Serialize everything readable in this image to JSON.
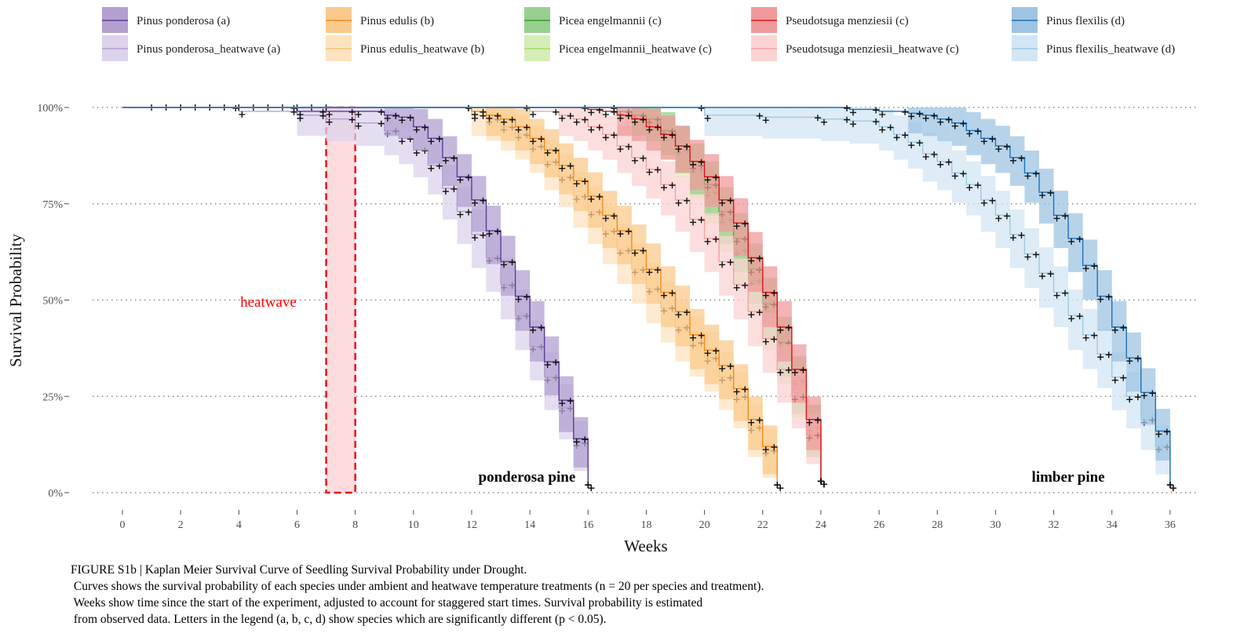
{
  "chart_data": {
    "type": "line",
    "xlabel": "Weeks",
    "ylabel": "Survival Probability",
    "xlim": [
      -1,
      37
    ],
    "ylim": [
      -0.04,
      1.04
    ],
    "x_ticks": [
      0,
      2,
      4,
      6,
      8,
      10,
      12,
      14,
      16,
      18,
      20,
      22,
      24,
      26,
      28,
      30,
      32,
      34,
      36
    ],
    "y_ticks": [
      {
        "value": 0,
        "label": "0%"
      },
      {
        "value": 0.25,
        "label": "25%"
      },
      {
        "value": 0.5,
        "label": "50%"
      },
      {
        "value": 0.75,
        "label": "75%"
      },
      {
        "value": 1,
        "label": "100%"
      }
    ],
    "grid": "horizontal dotted at y ticks",
    "legend_position": "top",
    "heatwave": {
      "x_start": 7,
      "x_end": 8,
      "label": "heatwave"
    },
    "annotations": [
      {
        "text": "ponderosa pine",
        "x": 13.9,
        "y": 0.045
      },
      {
        "text": "limber pine",
        "x": 32.5,
        "y": 0.045
      }
    ],
    "series": [
      {
        "name": "Pinus ponderosa (a)",
        "color": "#5e3c99",
        "ci_color": "#b2a0d0",
        "x": [
          0,
          6,
          7,
          8,
          9,
          9.5,
          10,
          10.5,
          11,
          11.5,
          12,
          12.5,
          13,
          13.5,
          14,
          14.5,
          15,
          15.5,
          16
        ],
        "y": [
          1,
          0.99,
          0.99,
          0.99,
          0.98,
          0.975,
          0.95,
          0.92,
          0.87,
          0.82,
          0.76,
          0.68,
          0.6,
          0.51,
          0.43,
          0.34,
          0.24,
          0.14,
          0.02
        ]
      },
      {
        "name": "Pinus ponderosa_heatwave (a)",
        "color": "#b2a0d0",
        "ci_color": "#dcd3ec",
        "x": [
          0,
          4,
          6,
          7,
          8,
          9,
          9.5,
          10,
          10.5,
          11,
          11.5,
          12,
          12.5,
          13,
          13.5,
          14,
          14.5,
          15,
          15.5,
          16
        ],
        "y": [
          1,
          0.99,
          0.98,
          0.97,
          0.96,
          0.94,
          0.92,
          0.89,
          0.85,
          0.79,
          0.73,
          0.67,
          0.61,
          0.54,
          0.46,
          0.38,
          0.3,
          0.22,
          0.13,
          0.02
        ]
      },
      {
        "name": "Pinus edulis (b)",
        "color": "#f28e1c",
        "ci_color": "#fbc98c",
        "x": [
          0,
          12,
          12.5,
          13,
          13.5,
          14,
          14.5,
          15,
          15.5,
          16,
          16.5,
          17,
          17.5,
          18,
          18.5,
          19,
          19.5,
          20,
          20.5,
          21,
          21.5,
          22,
          22.5
        ],
        "y": [
          1,
          0.99,
          0.98,
          0.97,
          0.95,
          0.92,
          0.89,
          0.85,
          0.81,
          0.77,
          0.72,
          0.68,
          0.63,
          0.58,
          0.52,
          0.47,
          0.41,
          0.37,
          0.33,
          0.27,
          0.19,
          0.12,
          0.02
        ]
      },
      {
        "name": "Pinus edulis_heatwave (b)",
        "color": "#f8c07a",
        "ci_color": "#fde3c0",
        "x": [
          0,
          12,
          12.5,
          13,
          13.5,
          14,
          14.5,
          15,
          15.5,
          16,
          16.5,
          17,
          17.5,
          18,
          18.5,
          19,
          19.5,
          20,
          20.5,
          21,
          21.5,
          22,
          22.5
        ],
        "y": [
          1,
          0.98,
          0.97,
          0.95,
          0.93,
          0.9,
          0.86,
          0.82,
          0.77,
          0.73,
          0.68,
          0.63,
          0.58,
          0.53,
          0.48,
          0.43,
          0.39,
          0.35,
          0.3,
          0.25,
          0.17,
          0.11,
          0.02
        ]
      },
      {
        "name": "Picea engelmannii (c)",
        "color": "#2ca02c",
        "ci_color": "#98d08f",
        "x": [
          0,
          17,
          17.5,
          18,
          18.5,
          19,
          19.5,
          20,
          20.5,
          21,
          21.5,
          22,
          22.5,
          23,
          23.5,
          24
        ],
        "y": [
          1,
          0.99,
          0.98,
          0.97,
          0.94,
          0.9,
          0.85,
          0.8,
          0.73,
          0.66,
          0.58,
          0.49,
          0.39,
          0.29,
          0.17,
          0.03
        ]
      },
      {
        "name": "Picea engelmannii_heatwave (c)",
        "color": "#a6d96a",
        "ci_color": "#d4eeb6",
        "x": [
          0,
          17,
          17.5,
          18,
          18.5,
          19,
          19.5,
          20,
          20.5,
          21,
          21.5,
          22,
          22.5,
          23,
          23.5,
          24
        ],
        "y": [
          1,
          0.99,
          0.98,
          0.96,
          0.93,
          0.89,
          0.84,
          0.78,
          0.71,
          0.63,
          0.55,
          0.46,
          0.37,
          0.28,
          0.17,
          0.03
        ]
      },
      {
        "name": "Pseudotsuga menziesii (c)",
        "color": "#d7191c",
        "ci_color": "#f09a9b",
        "x": [
          0,
          16,
          16.5,
          17,
          17.5,
          18,
          18.5,
          19,
          19.5,
          20,
          20.5,
          21,
          21.5,
          22,
          22.5,
          23,
          23.5,
          24
        ],
        "y": [
          1,
          0.995,
          0.99,
          0.98,
          0.97,
          0.95,
          0.93,
          0.9,
          0.86,
          0.82,
          0.76,
          0.7,
          0.61,
          0.52,
          0.43,
          0.32,
          0.19,
          0.03
        ]
      },
      {
        "name": "Pseudotsuga menziesii_heatwave (c)",
        "color": "#f4a2a3",
        "ci_color": "#fbd3d3",
        "x": [
          0,
          14,
          15,
          15.5,
          16,
          16.5,
          17,
          17.5,
          18,
          18.5,
          19,
          19.5,
          20,
          20.5,
          21,
          21.5,
          22,
          22.5,
          23,
          23.5,
          24
        ],
        "y": [
          1,
          0.99,
          0.98,
          0.97,
          0.95,
          0.93,
          0.9,
          0.87,
          0.84,
          0.8,
          0.76,
          0.71,
          0.66,
          0.6,
          0.54,
          0.47,
          0.4,
          0.32,
          0.25,
          0.15,
          0.03
        ]
      },
      {
        "name": "Pinus flexilis (d)",
        "color": "#2171b5",
        "ci_color": "#9ec4e3",
        "x": [
          0,
          25,
          26,
          27,
          27.5,
          28,
          28.5,
          29,
          29.5,
          30,
          30.5,
          31,
          31.5,
          32,
          32.5,
          33,
          33.5,
          34,
          34.5,
          35,
          35.5,
          36
        ],
        "y": [
          1,
          0.995,
          0.99,
          0.985,
          0.98,
          0.97,
          0.96,
          0.94,
          0.92,
          0.9,
          0.87,
          0.83,
          0.78,
          0.72,
          0.66,
          0.59,
          0.51,
          0.43,
          0.35,
          0.26,
          0.16,
          0.02
        ]
      },
      {
        "name": "Pinus flexilis_heatwave (d)",
        "color": "#9ecae1",
        "ci_color": "#d2e6f3",
        "x": [
          0,
          20,
          22,
          24,
          25,
          26,
          26.5,
          27,
          27.5,
          28,
          28.5,
          29,
          29.5,
          30,
          30.5,
          31,
          31.5,
          32,
          32.5,
          33,
          33.5,
          34,
          34.5,
          35,
          35.5,
          36
        ],
        "y": [
          1,
          0.98,
          0.975,
          0.97,
          0.965,
          0.95,
          0.93,
          0.91,
          0.88,
          0.86,
          0.83,
          0.8,
          0.76,
          0.72,
          0.67,
          0.62,
          0.57,
          0.52,
          0.46,
          0.41,
          0.36,
          0.3,
          0.25,
          0.19,
          0.12,
          0.02
        ]
      }
    ]
  },
  "caption": {
    "line1": "FIGURE S1b | Kaplan Meier Survival Curve of Seedling Survival Probability under Drought.",
    "line2": " Curves shows the survival probability of each species under ambient and heatwave temperature treatments (n = 20 per species and treatment).",
    "line3": " Weeks show time since the start of the experiment, adjusted to account for staggered start times. Survival probability is estimated",
    "line4": " from observed data. Letters in the legend (a, b, c, d) show species which are significantly different (p < 0.05)."
  }
}
